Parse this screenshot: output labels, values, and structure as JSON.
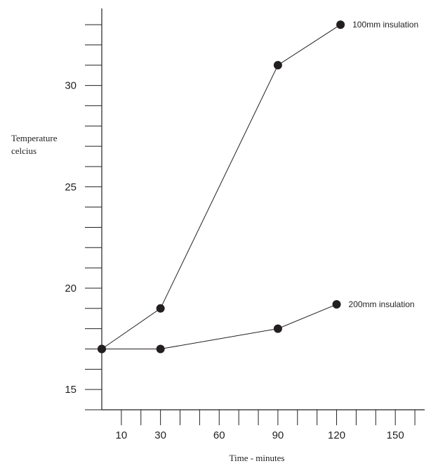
{
  "chart_data": {
    "type": "line",
    "title": "",
    "xlabel": "Time - minutes",
    "ylabel": [
      "Temperature",
      "celcius"
    ],
    "xlim": [
      0,
      165
    ],
    "ylim": [
      14,
      33.8
    ],
    "x_ticks": [
      10,
      30,
      60,
      90,
      120,
      150
    ],
    "y_ticks": [
      15,
      20,
      25,
      30
    ],
    "grid": false,
    "series": [
      {
        "name": "100mm insulation",
        "x": [
          0,
          30,
          90,
          122
        ],
        "y": [
          17,
          19,
          31,
          33
        ]
      },
      {
        "name": "200mm insulation",
        "x": [
          0,
          30,
          90,
          120
        ],
        "y": [
          17,
          17,
          18,
          19.2
        ]
      }
    ]
  }
}
